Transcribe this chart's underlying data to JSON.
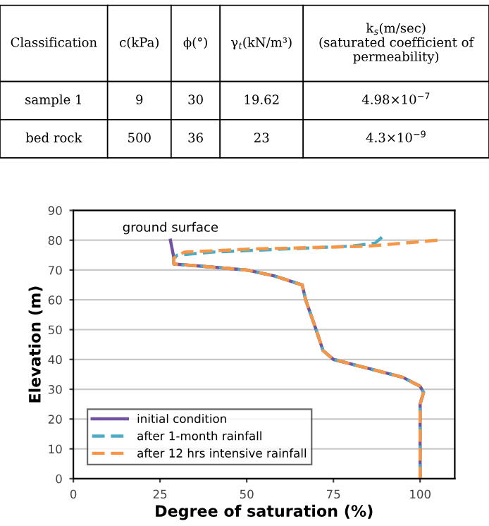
{
  "chart_data": [
    {
      "type": "other",
      "categories": [
        "Classification",
        "c(kPa)",
        "ϕ(°)",
        "γ$_{t}$(kN/m³)",
        "k$_{s}$(m/sec)\n(saturated coefficient of\npermeability)"
      ],
      "annotations": [
        "sample 1",
        "9",
        "30",
        "19.62",
        "4.98×10$^{−7}$",
        "bed rock",
        "500",
        "36",
        "23",
        "4.3×10$^{−9}$"
      ]
    },
    {
      "type": "line",
      "xlabel": "Degree of saturation (%)",
      "ylabel": "Elevation (m)",
      "xlim": [
        0,
        110
      ],
      "xticks": [
        0,
        25,
        50,
        75,
        100
      ],
      "ylim": [
        0,
        90
      ],
      "yticks": [
        0,
        10,
        20,
        30,
        40,
        50,
        60,
        70,
        80,
        90
      ],
      "grid": "y",
      "legend": "bottom left",
      "annotations": [
        {
          "text": "ground surface",
          "x": 28,
          "y": 80
        }
      ],
      "series": [
        {
          "name": "initial condition",
          "color": "#7253a0",
          "line_style": "solid",
          "x": [
            28,
            29,
            29,
            40,
            50,
            58,
            66,
            67,
            70,
            72,
            75,
            85,
            95,
            100,
            101,
            100,
            100
          ],
          "values": [
            80,
            74,
            72,
            71,
            70,
            68,
            65,
            60,
            50,
            43,
            40,
            37,
            34,
            31,
            29,
            25,
            0
          ]
        },
        {
          "name": "after 1-month rainfall",
          "color": "#4bacc6",
          "line_style": "dashed",
          "x": [
            89,
            87,
            80,
            60,
            40,
            30,
            29,
            29,
            40,
            50,
            58,
            66,
            67,
            70,
            72,
            75,
            85,
            95,
            100,
            101,
            100,
            100
          ],
          "values": [
            81,
            79,
            78,
            77,
            76,
            75,
            74,
            72,
            71,
            70,
            68,
            65,
            60,
            50,
            43,
            40,
            37,
            34,
            31,
            29,
            25,
            0
          ]
        },
        {
          "name": "after 12 hrs intensive rainfall",
          "color": "#f79646",
          "line_style": "dashed",
          "x": [
            105,
            95,
            85,
            50,
            32,
            29,
            29,
            40,
            50,
            58,
            66,
            67,
            70,
            72,
            75,
            85,
            95,
            100,
            101,
            100,
            100
          ],
          "values": [
            80,
            79,
            78,
            77,
            76,
            74,
            72,
            71,
            70,
            68,
            65,
            60,
            50,
            43,
            40,
            37,
            34,
            31,
            29,
            25,
            0
          ]
        }
      ]
    }
  ]
}
